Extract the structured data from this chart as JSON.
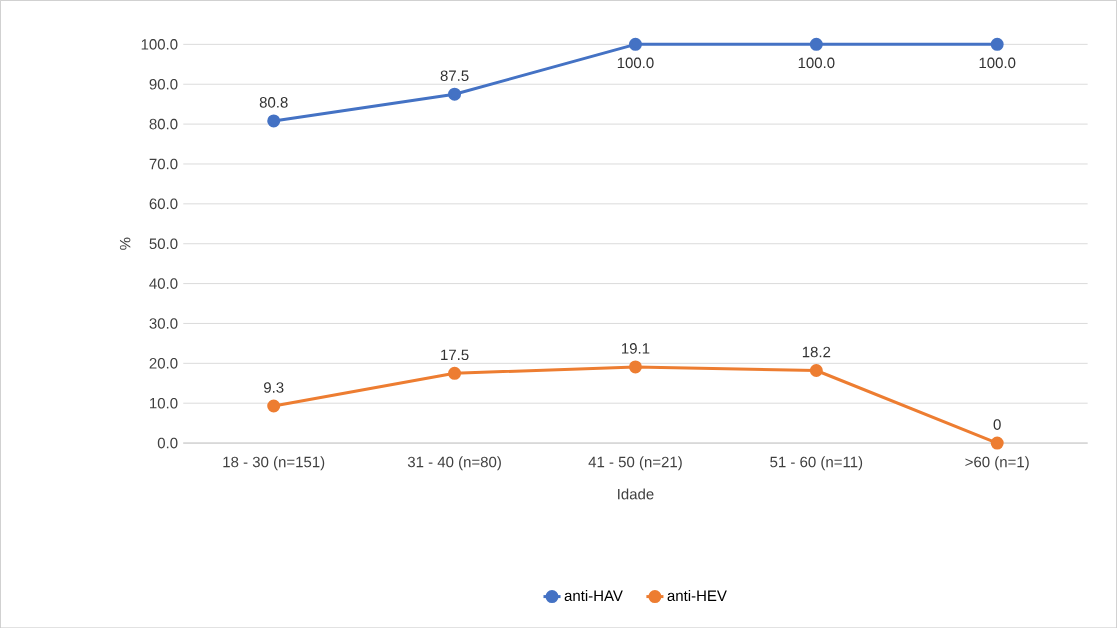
{
  "chart_data": {
    "type": "line",
    "xlabel": "Idade",
    "ylabel": "%",
    "categories": [
      "18 - 30 (n=151)",
      "31 - 40 (n=80)",
      "41 - 50 (n=21)",
      "51 - 60 (n=11)",
      ">60 (n=1)"
    ],
    "series": [
      {
        "name": "anti-HAV",
        "color": "#4472c4",
        "values": [
          80.8,
          87.5,
          100.0,
          100.0,
          100.0
        ],
        "value_labels": [
          "80.8",
          "87.5",
          "100.0",
          "100.0",
          "100.0"
        ]
      },
      {
        "name": "anti-HEV",
        "color": "#ed7d31",
        "values": [
          9.3,
          17.5,
          19.1,
          18.2,
          0
        ],
        "value_labels": [
          "9.3",
          "17.5",
          "19.1",
          "18.2",
          "0"
        ]
      }
    ],
    "ylim": [
      0,
      100
    ],
    "yticks": [
      {
        "value": 0,
        "label": "0.0"
      },
      {
        "value": 10,
        "label": "10.0"
      },
      {
        "value": 20,
        "label": "20.0"
      },
      {
        "value": 30,
        "label": "30.0"
      },
      {
        "value": 40,
        "label": "40.0"
      },
      {
        "value": 50,
        "label": "50.0"
      },
      {
        "value": 60,
        "label": "60.0"
      },
      {
        "value": 70,
        "label": "70.0"
      },
      {
        "value": 80,
        "label": "80.0"
      },
      {
        "value": 90,
        "label": "90.0"
      },
      {
        "value": 100,
        "label": "100.0"
      }
    ],
    "grid": "y",
    "legend": "bottom",
    "marker": "circle",
    "line_style": "solid"
  }
}
